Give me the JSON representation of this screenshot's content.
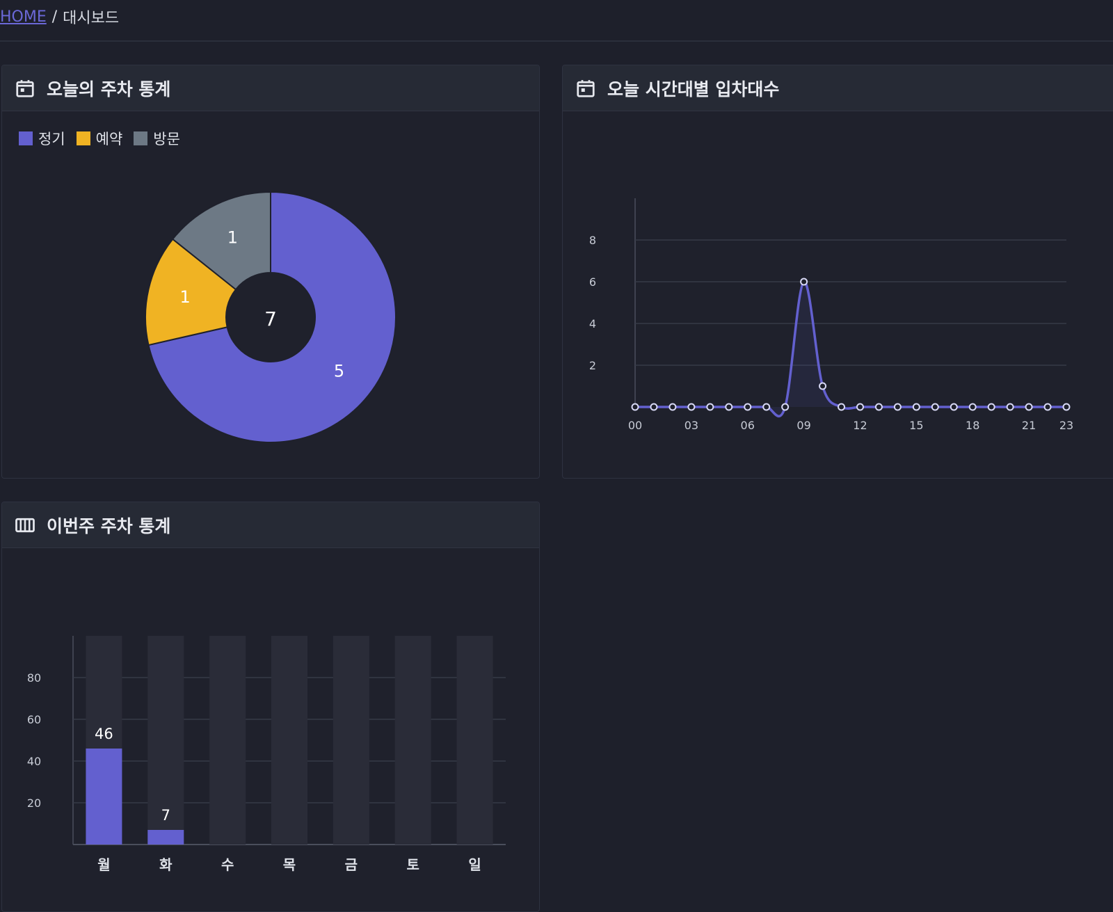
{
  "breadcrumb": {
    "home": "HOME",
    "separator": "/",
    "current": "대시보드"
  },
  "panels": {
    "today": {
      "title": "오늘의 주차 통계",
      "icon": "calendar-icon"
    },
    "hourly": {
      "title": "오늘 시간대별 입차대수",
      "icon": "calendar-icon"
    },
    "week": {
      "title": "이번주 주차 통계",
      "icon": "columns-icon"
    }
  },
  "colors": {
    "regular": "#6360cf",
    "reserved": "#f0b323",
    "visit": "#6d7985",
    "line": "#6360cf",
    "bar_bg": "#2a2c38"
  },
  "chart_data": [
    {
      "type": "pie",
      "legend": [
        "정기",
        "예약",
        "방문"
      ],
      "labels": [
        "정기",
        "예약",
        "방문"
      ],
      "values": [
        5,
        1,
        1
      ],
      "center_label": "7",
      "legend_position": "top-left"
    },
    {
      "type": "line",
      "x": [
        "00",
        "01",
        "02",
        "03",
        "04",
        "05",
        "06",
        "07",
        "08",
        "09",
        "10",
        "11",
        "12",
        "13",
        "14",
        "15",
        "16",
        "17",
        "18",
        "19",
        "20",
        "21",
        "22",
        "23"
      ],
      "values": [
        0,
        0,
        0,
        0,
        0,
        0,
        0,
        0,
        0,
        6,
        1,
        0,
        0,
        0,
        0,
        0,
        0,
        0,
        0,
        0,
        0,
        0,
        0,
        0
      ],
      "xticks": [
        "00",
        "03",
        "06",
        "09",
        "12",
        "15",
        "18",
        "21",
        "23"
      ],
      "yticks": [
        "2",
        "4",
        "6",
        "8"
      ],
      "ylim": [
        0,
        9
      ],
      "grid": true
    },
    {
      "type": "bar",
      "categories": [
        "월",
        "화",
        "수",
        "목",
        "금",
        "토",
        "일"
      ],
      "values": [
        46,
        7,
        0,
        0,
        0,
        0,
        0
      ],
      "data_labels": [
        "46",
        "7",
        "",
        "",
        "",
        "",
        ""
      ],
      "yticks": [
        "20",
        "40",
        "60",
        "80"
      ],
      "ylim": [
        0,
        100
      ],
      "grid": true
    }
  ]
}
